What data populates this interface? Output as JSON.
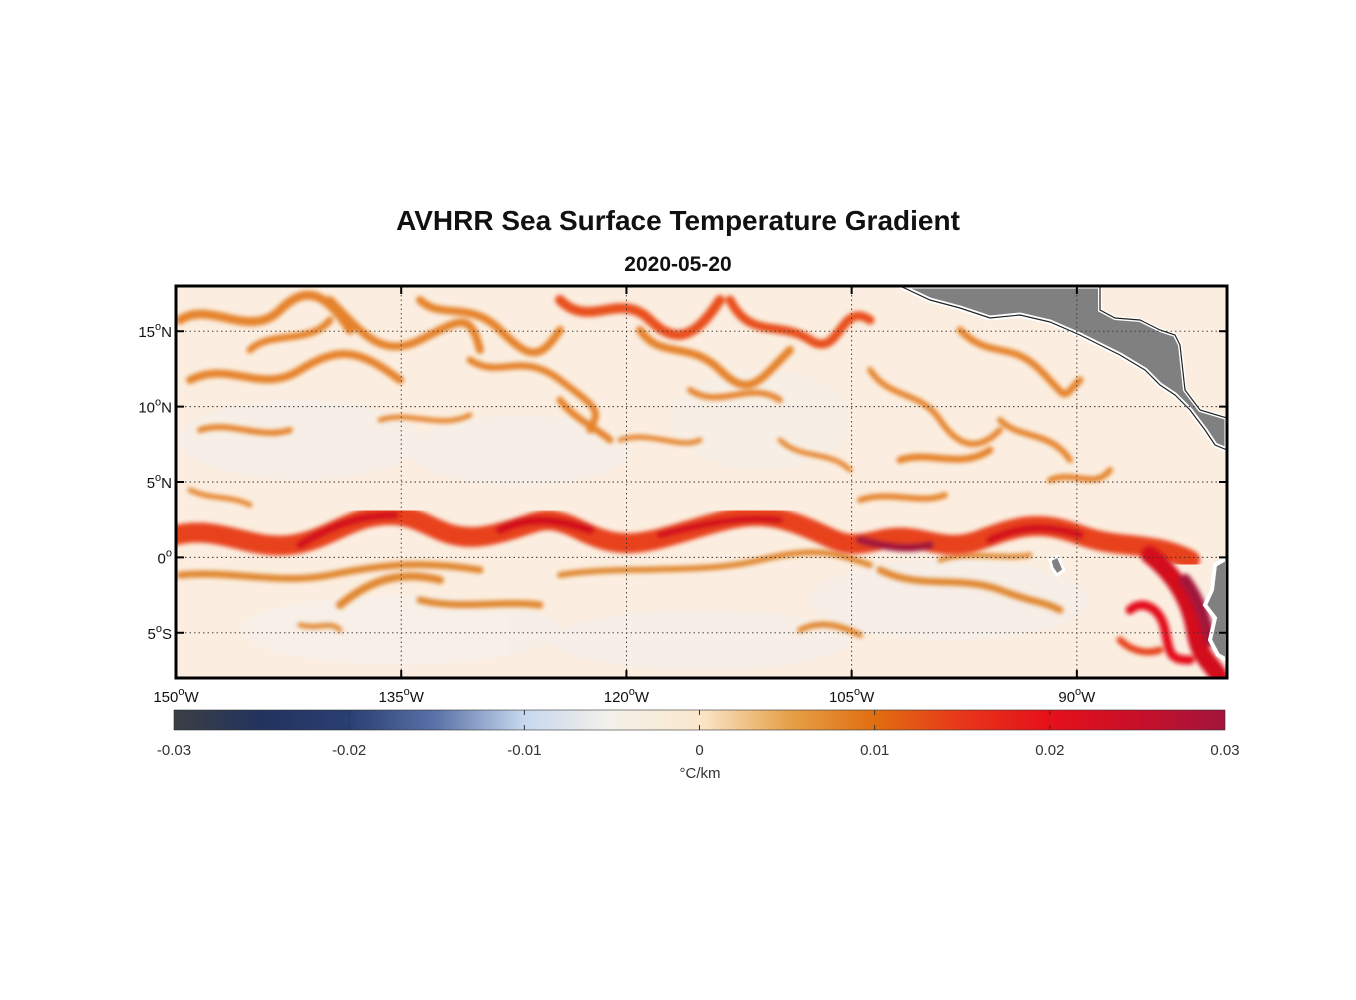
{
  "title": "AVHRR Sea Surface Temperature Gradient",
  "subtitle": "2020-05-20",
  "colors": {
    "background_field": "#fbeee0",
    "land": "#808080",
    "front_weak": "#e07a1e",
    "front_mid": "#e8421a",
    "front_strong": "#d3101d",
    "front_max": "#a3123a"
  },
  "map": {
    "lat_labels": [
      {
        "lat": 15,
        "deg": "15",
        "hem": "N"
      },
      {
        "lat": 10,
        "deg": "10",
        "hem": "N"
      },
      {
        "lat": 5,
        "deg": "5",
        "hem": "N"
      },
      {
        "lat": 0,
        "deg": "0",
        "hem": ""
      },
      {
        "lat": -5,
        "deg": "5",
        "hem": "S"
      }
    ],
    "lon_labels": [
      {
        "lon": -150,
        "deg": "150",
        "hem": "W"
      },
      {
        "lon": -135,
        "deg": "135",
        "hem": "W"
      },
      {
        "lon": -120,
        "deg": "120",
        "hem": "W"
      },
      {
        "lon": -105,
        "deg": "105",
        "hem": "W"
      },
      {
        "lon": -90,
        "deg": "90",
        "hem": "W"
      }
    ],
    "lon_range": [
      -150,
      -80
    ],
    "lat_range": [
      -8,
      18
    ]
  },
  "colorbar": {
    "ticks": [
      "-0.03",
      "-0.02",
      "-0.01",
      "0",
      "0.01",
      "0.02",
      "0.03"
    ],
    "units": "°C/km",
    "stops": [
      "#3b3f45",
      "#22335e",
      "#2a3f72",
      "#5a73a8",
      "#c7d8ee",
      "#f4f1ea",
      "#fbe7cc",
      "#e6a24a",
      "#e06e10",
      "#e8361a",
      "#e5101a",
      "#c8102a",
      "#a3143c"
    ]
  }
}
